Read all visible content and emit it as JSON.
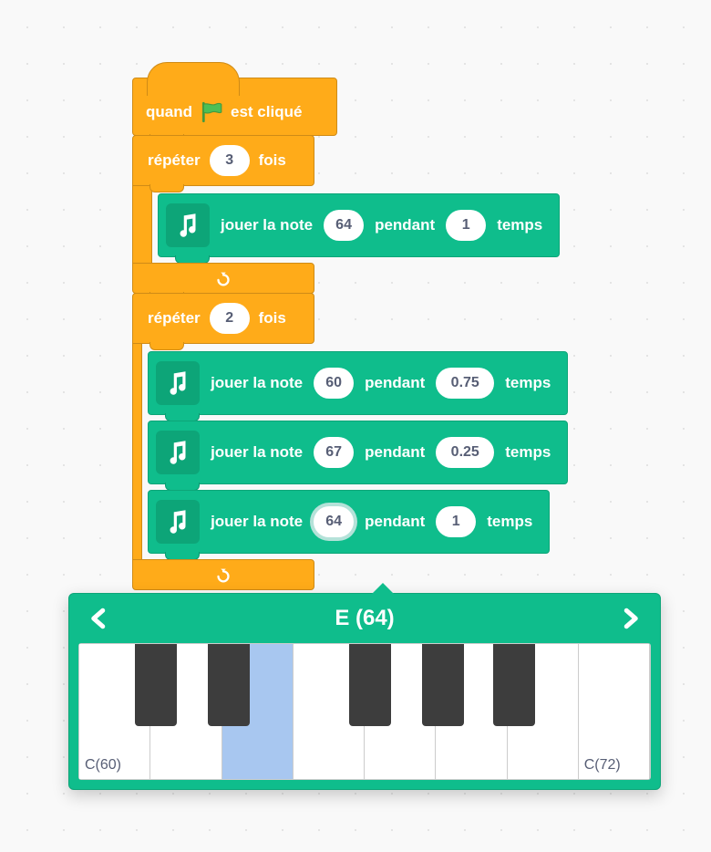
{
  "colors": {
    "event": "#ffab19",
    "event_border": "#cf8b17",
    "music": "#0fbd8c",
    "music_border": "#0da578",
    "text_on_block": "#ffffff",
    "input_bg": "#ffffff",
    "input_text": "#575e75",
    "selected_key": "#a8c7f0",
    "black_key": "#3d3d3d",
    "background": "#f9f9f9"
  },
  "hat": {
    "text_before": "quand",
    "text_after": "est cliqué"
  },
  "repeat1": {
    "label_before": "répéter",
    "count": "3",
    "label_after": "fois",
    "blocks": [
      {
        "label_before": "jouer la note",
        "note": "64",
        "label_mid": "pendant",
        "beats": "1",
        "label_after": "temps",
        "highlighted": false
      }
    ]
  },
  "repeat2": {
    "label_before": "répéter",
    "count": "2",
    "label_after": "fois",
    "blocks": [
      {
        "label_before": "jouer la note",
        "note": "60",
        "label_mid": "pendant",
        "beats": "0.75",
        "label_after": "temps",
        "highlighted": false
      },
      {
        "label_before": "jouer la note",
        "note": "67",
        "label_mid": "pendant",
        "beats": "0.25",
        "label_after": "temps",
        "highlighted": false
      },
      {
        "label_before": "jouer la note",
        "note": "64",
        "label_mid": "pendant",
        "beats": "1",
        "label_after": "temps",
        "highlighted": true
      }
    ]
  },
  "piano": {
    "title": "E (64)",
    "left_label": "C(60)",
    "right_label": "C(72)",
    "white_keys": 8,
    "selected_index": 2,
    "black_keys_pct": [
      9.8,
      22.5,
      47.3,
      60.0,
      72.5
    ]
  }
}
